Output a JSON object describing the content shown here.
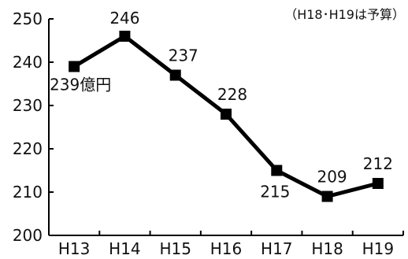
{
  "chart_data": {
    "type": "line",
    "categories": [
      "H13",
      "H14",
      "H15",
      "H16",
      "H17",
      "H18",
      "H19"
    ],
    "series": [
      {
        "values": [
          239,
          246,
          237,
          228,
          215,
          209,
          212
        ]
      }
    ],
    "data_labels": [
      "239億円",
      "246",
      "237",
      "228",
      "215",
      "209",
      "212"
    ],
    "note": "（H18･H19は予算）",
    "yticks": [
      200,
      210,
      220,
      230,
      240,
      250
    ],
    "ylim": [
      200,
      250
    ],
    "grid": false,
    "line_color": "#000000",
    "marker": "square"
  }
}
